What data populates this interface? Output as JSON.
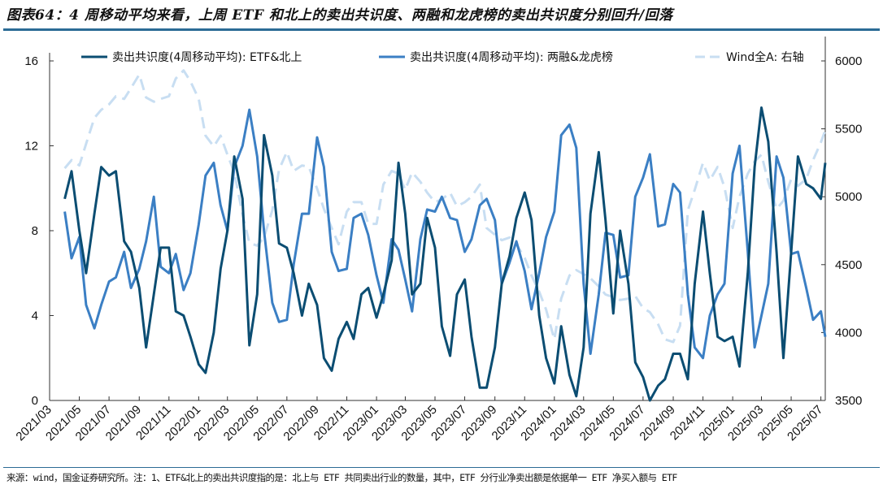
{
  "title": "图表64：4 周移动平均来看，上周 ETF 和北上的卖出共识度、两融和龙虎榜的卖出共识度分别回升/回落",
  "source": "来源：wind，国金证券研究所。注：1、ETF&北上的卖出共识度指的是：北上与 ETF 共同卖出行业的数量，其中，ETF 分行业净卖出额是依据单一 ETF 净买入额与 ETF",
  "chart_data": {
    "type": "line",
    "grid": false,
    "legend_position": "top",
    "xlim": [
      "2021-03-01",
      "2025-07-10"
    ],
    "ylim_left": [
      0,
      16
    ],
    "ylim_right": [
      3500,
      6000
    ],
    "left_ticks": [
      "0",
      "4",
      "8",
      "12",
      "16"
    ],
    "right_ticks": [
      "3500",
      "4000",
      "4500",
      "5000",
      "5500",
      "6000"
    ],
    "x_ticks": [
      "2021/03",
      "2021/05",
      "2021/07",
      "2021/09",
      "2021/11",
      "2022/01",
      "2022/03",
      "2022/05",
      "2022/07",
      "2022/09",
      "2022/11",
      "2023/01",
      "2023/03",
      "2023/05",
      "2023/07",
      "2023/09",
      "2023/11",
      "2024/01",
      "2024/03",
      "2024/05",
      "2024/07",
      "2024/09",
      "2024/11",
      "2025/01",
      "2025/03",
      "2025/05",
      "2025/07"
    ],
    "dates": [
      "2021-04-01",
      "2021-04-15",
      "2021-05-01",
      "2021-05-15",
      "2021-06-01",
      "2021-06-15",
      "2021-07-01",
      "2021-07-15",
      "2021-08-01",
      "2021-08-15",
      "2021-09-01",
      "2021-09-15",
      "2021-10-01",
      "2021-10-15",
      "2021-11-01",
      "2021-11-15",
      "2021-12-01",
      "2021-12-15",
      "2022-01-01",
      "2022-01-15",
      "2022-02-01",
      "2022-02-15",
      "2022-03-01",
      "2022-03-15",
      "2022-04-01",
      "2022-04-15",
      "2022-05-01",
      "2022-05-15",
      "2022-06-01",
      "2022-06-15",
      "2022-07-01",
      "2022-07-15",
      "2022-08-01",
      "2022-08-15",
      "2022-09-01",
      "2022-09-15",
      "2022-10-01",
      "2022-10-15",
      "2022-11-01",
      "2022-11-15",
      "2022-12-01",
      "2022-12-15",
      "2023-01-01",
      "2023-01-15",
      "2023-02-01",
      "2023-02-15",
      "2023-03-01",
      "2023-03-15",
      "2023-04-01",
      "2023-04-15",
      "2023-05-01",
      "2023-05-15",
      "2023-06-01",
      "2023-06-15",
      "2023-07-01",
      "2023-07-15",
      "2023-08-01",
      "2023-08-15",
      "2023-09-01",
      "2023-09-15",
      "2023-10-01",
      "2023-10-15",
      "2023-11-01",
      "2023-11-15",
      "2023-12-01",
      "2023-12-15",
      "2024-01-01",
      "2024-01-15",
      "2024-02-01",
      "2024-02-15",
      "2024-03-01",
      "2024-03-15",
      "2024-04-01",
      "2024-04-15",
      "2024-05-01",
      "2024-05-15",
      "2024-06-01",
      "2024-06-15",
      "2024-07-01",
      "2024-07-15",
      "2024-08-01",
      "2024-08-15",
      "2024-09-01",
      "2024-09-15",
      "2024-10-01",
      "2024-10-15",
      "2024-11-01",
      "2024-11-15",
      "2024-12-01",
      "2024-12-15",
      "2025-01-01",
      "2025-01-15",
      "2025-02-01",
      "2025-02-15",
      "2025-03-01",
      "2025-03-15",
      "2025-04-01",
      "2025-04-15",
      "2025-05-01",
      "2025-05-15",
      "2025-06-01",
      "2025-06-15",
      "2025-07-01",
      "2025-07-10"
    ],
    "series": [
      {
        "name": "卖出共识度(4周移动平均): ETF&北上",
        "axis": "left",
        "color": "#0b4d72",
        "style": "solid",
        "values": [
          9.5,
          10.8,
          8.0,
          6.0,
          8.8,
          11.0,
          10.6,
          10.8,
          7.5,
          7.0,
          5.3,
          2.5,
          5.0,
          7.2,
          7.2,
          4.2,
          4.0,
          3.0,
          1.7,
          1.3,
          3.2,
          6.2,
          8.0,
          11.5,
          9.5,
          2.6,
          5.0,
          12.5,
          10.6,
          7.4,
          7.2,
          6.0,
          4.0,
          5.5,
          4.5,
          2.0,
          1.4,
          2.9,
          3.7,
          2.9,
          5.0,
          5.3,
          3.9,
          5.0,
          6.6,
          11.2,
          8.8,
          5.0,
          5.5,
          8.6,
          7.2,
          3.5,
          2.1,
          5.0,
          5.7,
          3.0,
          0.6,
          0.6,
          2.5,
          5.5,
          6.8,
          8.6,
          9.8,
          8.5,
          4.0,
          2.0,
          0.8,
          3.5,
          1.2,
          0.2,
          2.5,
          8.8,
          11.7,
          8.5,
          4.1,
          8.0,
          5.5,
          1.8,
          1.1,
          0.0,
          0.7,
          1.0,
          2.2,
          2.2,
          1.0,
          5.5,
          8.9,
          6.0,
          3.0,
          2.8,
          3.0,
          1.6,
          6.0,
          11.0,
          13.8,
          12.2,
          7.0,
          2.0,
          7.0,
          11.5,
          10.2,
          10.0,
          9.5,
          11.2
        ]
      },
      {
        "name": "卖出共识度(4周移动平均): 两融&龙虎榜",
        "axis": "left",
        "color": "#3b7fc4",
        "style": "solid",
        "values": [
          8.9,
          6.7,
          7.7,
          4.5,
          3.4,
          4.5,
          5.6,
          5.8,
          7.0,
          5.3,
          6.2,
          7.5,
          9.6,
          6.3,
          6.0,
          6.9,
          5.2,
          6.0,
          8.3,
          10.6,
          11.2,
          9.2,
          8.0,
          11.0,
          12.0,
          13.7,
          11.5,
          8.0,
          4.6,
          3.7,
          3.8,
          6.4,
          8.8,
          8.8,
          12.4,
          11.0,
          7.0,
          6.1,
          6.2,
          8.6,
          8.8,
          7.8,
          5.9,
          4.6,
          7.6,
          7.1,
          5.7,
          4.2,
          7.6,
          9.0,
          8.9,
          9.6,
          8.6,
          8.5,
          7.0,
          7.6,
          9.2,
          9.5,
          8.5,
          5.5,
          6.5,
          7.5,
          6.1,
          4.3,
          6.0,
          7.7,
          8.9,
          12.5,
          13.0,
          11.9,
          5.5,
          2.2,
          5.0,
          7.9,
          7.8,
          5.8,
          5.9,
          9.6,
          10.5,
          11.6,
          8.2,
          8.3,
          10.2,
          9.8,
          5.0,
          2.5,
          2.0,
          4.0,
          5.0,
          5.5,
          10.7,
          12.0,
          7.0,
          2.5,
          4.0,
          5.5,
          11.5,
          10.5,
          6.9,
          7.0,
          5.3,
          3.8,
          4.2,
          3.0
        ]
      },
      {
        "name": "Wind全A: 右轴",
        "axis": "right",
        "color": "#c8def2",
        "style": "dashed",
        "values": [
          5210,
          5270,
          5230,
          5390,
          5580,
          5640,
          5680,
          5740,
          5720,
          5800,
          5900,
          5730,
          5700,
          5720,
          5740,
          5870,
          5930,
          5850,
          5720,
          5450,
          5370,
          5450,
          5310,
          5180,
          4870,
          4660,
          4640,
          4700,
          4900,
          5200,
          5330,
          5190,
          5230,
          5220,
          5060,
          4910,
          4770,
          4650,
          4890,
          4960,
          4960,
          4800,
          4800,
          5090,
          5190,
          5170,
          5050,
          5180,
          5110,
          5030,
          4960,
          4980,
          5030,
          4930,
          4960,
          5000,
          5090,
          4770,
          4720,
          4680,
          4700,
          4650,
          4550,
          4420,
          4300,
          4170,
          3950,
          4250,
          4420,
          4460,
          4430,
          4400,
          4340,
          4280,
          4260,
          4240,
          4250,
          4270,
          4180,
          4150,
          4060,
          3950,
          3930,
          4050,
          4900,
          5050,
          5250,
          5120,
          5220,
          5070,
          4770,
          5000,
          5170,
          5260,
          5310,
          5110,
          4910,
          4970,
          5130,
          5080,
          5130,
          5270,
          5400,
          5490
        ]
      }
    ]
  }
}
